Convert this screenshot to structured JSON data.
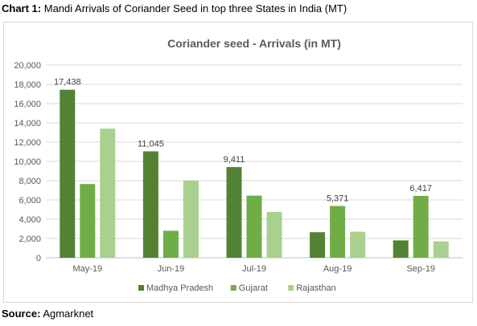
{
  "caption": {
    "label": "Chart 1:",
    "text": "Mandi Arrivals of Coriander Seed in top three States in India (MT)"
  },
  "source": {
    "label": "Source:",
    "text": "Agmarknet"
  },
  "colors": {
    "madhya_pradesh": "#548235",
    "gujarat": "#70ad47",
    "rajasthan": "#a9d08e",
    "gridline": "#d9d9d9",
    "axis_text": "#595959"
  },
  "chart_data": {
    "type": "bar",
    "title": "Coriander seed - Arrivals (in MT)",
    "xlabel": "",
    "ylabel": "",
    "ylim": [
      0,
      20000
    ],
    "yticks": [
      "0",
      "2,000",
      "4,000",
      "6,000",
      "8,000",
      "10,000",
      "12,000",
      "14,000",
      "16,000",
      "18,000",
      "20,000"
    ],
    "grid": true,
    "legend_position": "bottom",
    "categories": [
      "May-19",
      "Jun-19",
      "Jul-19",
      "Aug-19",
      "Sep-19"
    ],
    "series": [
      {
        "name": "Madhya Pradesh",
        "values": [
          17438,
          11045,
          9411,
          2650,
          1800
        ]
      },
      {
        "name": "Gujarat",
        "values": [
          7650,
          2800,
          6450,
          5371,
          6417
        ]
      },
      {
        "name": "Rajasthan",
        "values": [
          13400,
          8000,
          4750,
          2700,
          1700
        ]
      }
    ],
    "data_labels": [
      {
        "category": "May-19",
        "series": "Madhya Pradesh",
        "text": "17,438",
        "value": 17438
      },
      {
        "category": "Jun-19",
        "series": "Madhya Pradesh",
        "text": "11,045",
        "value": 11045
      },
      {
        "category": "Jul-19",
        "series": "Madhya Pradesh",
        "text": "9,411",
        "value": 9411
      },
      {
        "category": "Aug-19",
        "series": "Gujarat",
        "text": "5,371",
        "value": 5371
      },
      {
        "category": "Sep-19",
        "series": "Gujarat",
        "text": "6,417",
        "value": 6417
      }
    ]
  }
}
